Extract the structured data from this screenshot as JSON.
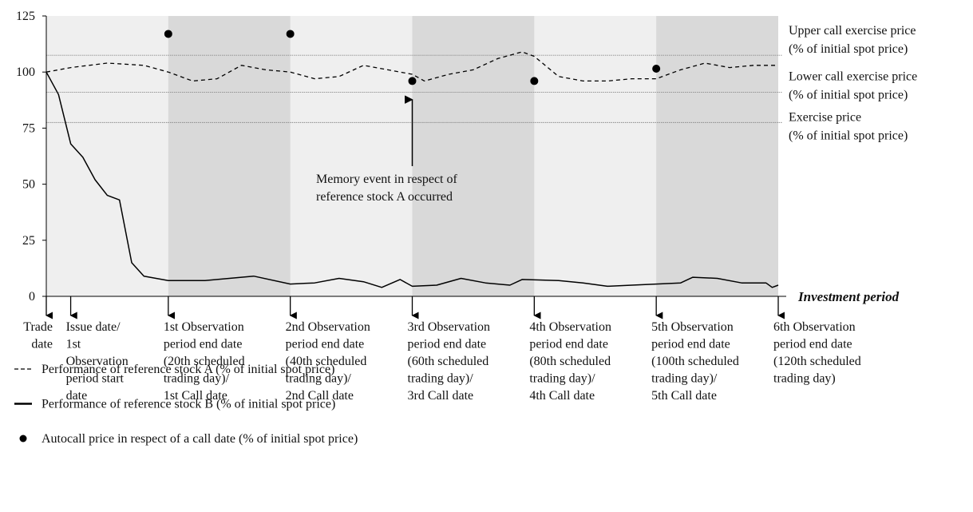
{
  "chart_data": {
    "type": "line",
    "xlim": [
      0,
      120
    ],
    "ylim": [
      0,
      125
    ],
    "yticks": [
      0,
      25,
      50,
      75,
      100,
      125
    ],
    "x_axis_label": "Investment period",
    "background_color": "#efefef",
    "shaded_color": "#d9d9d9",
    "shaded_periods": [
      [
        20,
        40
      ],
      [
        60,
        80
      ],
      [
        100,
        120
      ]
    ],
    "series": [
      {
        "name": "Performance of reference stock A (% of initial spot price)",
        "color": "#000000",
        "style": "dashed",
        "x": [
          0,
          4,
          10,
          16,
          20,
          24,
          28,
          32,
          36,
          40,
          44,
          48,
          52,
          56,
          60,
          62,
          66,
          70,
          74,
          78,
          80,
          84,
          88,
          92,
          96,
          100,
          104,
          108,
          112,
          116,
          120
        ],
        "values": [
          100,
          102,
          104,
          103,
          100,
          96,
          97,
          103,
          101,
          100,
          97,
          98,
          103,
          101,
          99,
          96,
          99,
          101,
          106,
          109,
          107,
          98,
          96,
          96,
          97,
          97,
          101,
          104,
          102,
          103,
          103
        ]
      },
      {
        "name": "Performance of reference stock B (% of initial spot price)",
        "color": "#000000",
        "style": "solid",
        "x": [
          0,
          2,
          4,
          6,
          8,
          10,
          12,
          14,
          16,
          20,
          26,
          34,
          40,
          44,
          48,
          52,
          55,
          58,
          60,
          64,
          68,
          72,
          76,
          78,
          84,
          88,
          92,
          96,
          100,
          104,
          106,
          110,
          114,
          118,
          119,
          120
        ],
        "values": [
          100,
          90,
          68,
          62,
          52,
          45,
          43,
          15,
          9,
          7,
          7,
          9,
          5.5,
          6,
          8,
          6.5,
          4,
          7.5,
          4.5,
          5,
          8,
          6,
          5,
          7.5,
          7,
          6,
          4.5,
          5,
          5.5,
          6,
          8.5,
          8,
          6,
          6,
          4,
          5
        ]
      },
      {
        "name": "Autocall price in respect of a call date (% of initial spot price)",
        "color": "#000000",
        "style": "points",
        "x": [
          20,
          40,
          60,
          80,
          100
        ],
        "values": [
          117,
          117,
          96,
          96,
          101.5
        ]
      }
    ],
    "reference_lines": [
      {
        "value": 107.5,
        "label": [
          "Upper call exercise price",
          "(% of initial spot price)"
        ]
      },
      {
        "value": 91,
        "label": [
          "Lower call exercise price",
          "(% of initial spot price)"
        ]
      },
      {
        "value": 77.5,
        "label": [
          "Exercise price",
          "(% of initial spot price)"
        ]
      }
    ],
    "annotation": {
      "x": 60,
      "y": 92,
      "lines": [
        "Memory event in respect of",
        "reference stock A occurred"
      ]
    },
    "x_markers": [
      {
        "x": 0,
        "label": [
          "Trade",
          "date"
        ]
      },
      {
        "x": 4,
        "label": [
          "Issue date/",
          "1st",
          "Observation",
          "period start",
          "date"
        ]
      },
      {
        "x": 20,
        "label": [
          "1st Observation",
          "period end date",
          "(20th scheduled",
          "trading day)/",
          "1st Call date"
        ]
      },
      {
        "x": 40,
        "label": [
          "2nd Observation",
          "period end date",
          "(40th scheduled",
          "trading day)/",
          "2nd Call date"
        ]
      },
      {
        "x": 60,
        "label": [
          "3rd Observation",
          "period end date",
          "(60th scheduled",
          "trading day)/",
          "3rd Call date"
        ]
      },
      {
        "x": 80,
        "label": [
          "4th Observation",
          "period end date",
          "(80th scheduled",
          "trading day)/",
          "4th Call date"
        ]
      },
      {
        "x": 100,
        "label": [
          "5th Observation",
          "period end date",
          " (100th scheduled",
          " trading day)/",
          "5th Call date"
        ]
      },
      {
        "x": 120,
        "label": [
          "6th Observation",
          "period end date",
          "(120th scheduled",
          "trading day)"
        ]
      }
    ]
  }
}
